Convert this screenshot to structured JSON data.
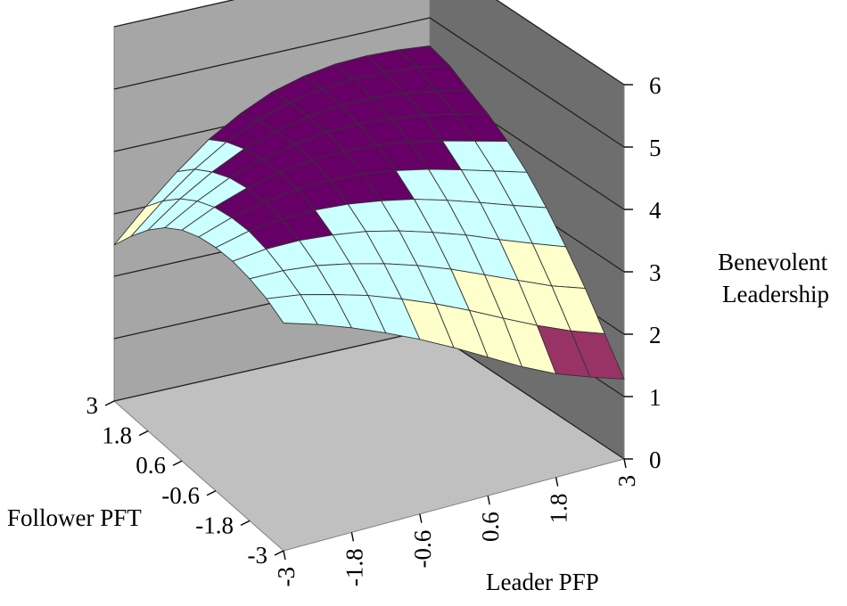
{
  "chart_data": {
    "type": "surface",
    "zlabel_lines": [
      "Benevolent",
      "Leadership"
    ],
    "xlabel": "Leader PFP",
    "ylabel": "Follower PFT",
    "x_ticks": [
      "-3",
      "-1.8",
      "-0.6",
      "0.6",
      "1.8",
      "3"
    ],
    "y_ticks": [
      "3",
      "1.8",
      "0.6",
      "-0.6",
      "-1.8",
      "-3"
    ],
    "z_ticks": [
      "0",
      "1",
      "2",
      "3",
      "4",
      "5",
      "6"
    ],
    "zlim": [
      0,
      6
    ],
    "x_range": [
      -3,
      3
    ],
    "y_range": [
      -3,
      3
    ],
    "grid": true,
    "band_colors": {
      "0-1": "#ffccff",
      "1-2": "#993366",
      "2-3": "#ffffcc",
      "3-4": "#ccffff",
      "4-5": "#660066",
      "5-6": "#ff8080"
    },
    "x": [
      -3,
      -2.4,
      -1.8,
      -1.2,
      -0.6,
      0,
      0.6,
      1.2,
      1.8,
      2.4,
      3
    ],
    "y": [
      -3,
      -2.4,
      -1.8,
      -1.2,
      -0.6,
      0,
      0.6,
      1.2,
      1.8,
      2.4,
      3
    ],
    "z": [
      [
        3.65,
        3.48,
        3.28,
        3.05,
        2.8,
        2.52,
        2.22,
        1.92,
        1.66,
        1.46,
        1.28
      ],
      [
        3.8,
        3.72,
        3.58,
        3.42,
        3.22,
        3.0,
        2.75,
        2.48,
        2.22,
        1.99,
        1.8
      ],
      [
        3.88,
        3.87,
        3.81,
        3.7,
        3.56,
        3.39,
        3.19,
        2.96,
        2.73,
        2.5,
        2.32
      ],
      [
        3.92,
        3.98,
        3.98,
        3.93,
        3.85,
        3.72,
        3.56,
        3.38,
        3.17,
        2.97,
        2.78
      ],
      [
        3.9,
        4.03,
        4.09,
        4.1,
        4.06,
        3.98,
        3.87,
        3.72,
        3.55,
        3.37,
        3.2
      ],
      [
        3.83,
        4.01,
        4.13,
        4.2,
        4.22,
        4.19,
        4.11,
        4.0,
        3.86,
        3.71,
        3.56
      ],
      [
        3.7,
        3.94,
        4.12,
        4.24,
        4.31,
        4.33,
        4.3,
        4.22,
        4.11,
        3.98,
        3.85
      ],
      [
        3.5,
        3.8,
        4.05,
        4.22,
        4.34,
        4.41,
        4.42,
        4.38,
        4.31,
        4.2,
        4.08
      ],
      [
        3.22,
        3.6,
        3.91,
        4.16,
        4.32,
        4.43,
        4.49,
        4.49,
        4.45,
        4.36,
        4.26
      ],
      [
        2.88,
        3.33,
        3.72,
        4.04,
        4.27,
        4.44,
        4.54,
        4.58,
        4.57,
        4.53,
        4.45
      ],
      [
        2.5,
        3.0,
        3.45,
        3.85,
        4.15,
        4.38,
        4.52,
        4.6,
        4.62,
        4.6,
        4.55
      ]
    ]
  }
}
